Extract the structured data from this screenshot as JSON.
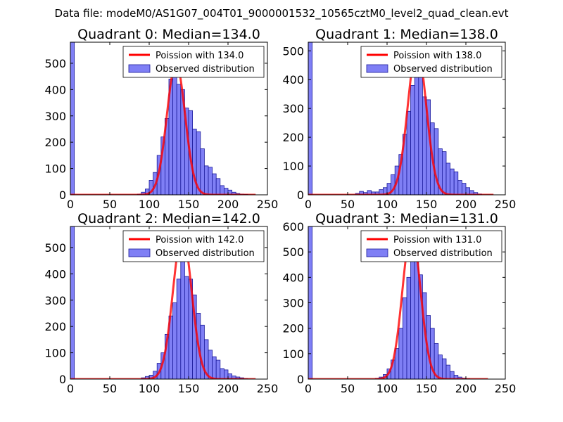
{
  "suptitle": "Data file: modeM0/AS1G07_004T01_9000001532_10565cztM0_level2_quad_clean.evt",
  "colors": {
    "bar_fill": "#7f7ff5",
    "bar_edge": "#1a1a99",
    "poisson_line": "#ff0000",
    "legend_edge": "#000000",
    "axes_edge": "#000000"
  },
  "chart_data": [
    {
      "type": "bar",
      "title": "Quadrant 0: Median=134.0",
      "xlim": [
        0,
        250
      ],
      "ylim": [
        0,
        580
      ],
      "xticks": [
        0,
        50,
        100,
        150,
        200,
        250
      ],
      "yticks": [
        0,
        100,
        200,
        300,
        400,
        500
      ],
      "bin_width": 5,
      "hist_bins": [
        [
          0,
          580
        ],
        [
          85,
          3
        ],
        [
          90,
          10
        ],
        [
          95,
          22
        ],
        [
          100,
          55
        ],
        [
          105,
          85
        ],
        [
          110,
          150
        ],
        [
          115,
          220
        ],
        [
          120,
          290
        ],
        [
          125,
          440
        ],
        [
          130,
          460
        ],
        [
          135,
          420
        ],
        [
          140,
          400
        ],
        [
          145,
          330
        ],
        [
          150,
          320
        ],
        [
          155,
          250
        ],
        [
          160,
          240
        ],
        [
          165,
          175
        ],
        [
          170,
          110
        ],
        [
          175,
          105
        ],
        [
          180,
          80
        ],
        [
          185,
          62
        ],
        [
          190,
          35
        ],
        [
          195,
          25
        ],
        [
          200,
          18
        ],
        [
          205,
          10
        ],
        [
          210,
          5
        ],
        [
          215,
          3
        ],
        [
          220,
          2
        ]
      ],
      "median": 134.0,
      "poisson_peak": 500,
      "poisson_range": [
        0,
        235
      ],
      "legend": [
        "Poission with 134.0",
        "Observed distribution"
      ]
    },
    {
      "type": "bar",
      "title": "Quadrant 1: Median=138.0",
      "xlim": [
        0,
        250
      ],
      "ylim": [
        0,
        530
      ],
      "xticks": [
        0,
        50,
        100,
        150,
        200,
        250
      ],
      "yticks": [
        0,
        100,
        200,
        300,
        400,
        500
      ],
      "bin_width": 5,
      "hist_bins": [
        [
          0,
          530
        ],
        [
          60,
          5
        ],
        [
          65,
          12
        ],
        [
          70,
          8
        ],
        [
          75,
          15
        ],
        [
          80,
          10
        ],
        [
          85,
          10
        ],
        [
          90,
          18
        ],
        [
          95,
          25
        ],
        [
          100,
          40
        ],
        [
          105,
          70
        ],
        [
          110,
          100
        ],
        [
          115,
          140
        ],
        [
          120,
          210
        ],
        [
          125,
          290
        ],
        [
          130,
          380
        ],
        [
          135,
          460
        ],
        [
          140,
          420
        ],
        [
          145,
          340
        ],
        [
          150,
          330
        ],
        [
          155,
          250
        ],
        [
          160,
          230
        ],
        [
          165,
          160
        ],
        [
          170,
          150
        ],
        [
          175,
          110
        ],
        [
          180,
          90
        ],
        [
          185,
          80
        ],
        [
          190,
          50
        ],
        [
          195,
          40
        ],
        [
          200,
          25
        ],
        [
          205,
          15
        ],
        [
          210,
          8
        ],
        [
          215,
          3
        ]
      ],
      "median": 138.0,
      "poisson_peak": 510,
      "poisson_range": [
        0,
        235
      ],
      "legend": [
        "Poission with 138.0",
        "Observed distribution"
      ]
    },
    {
      "type": "bar",
      "title": "Quadrant 2: Median=142.0",
      "xlim": [
        0,
        250
      ],
      "ylim": [
        0,
        580
      ],
      "xticks": [
        0,
        50,
        100,
        150,
        200,
        250
      ],
      "yticks": [
        0,
        100,
        200,
        300,
        400,
        500
      ],
      "bin_width": 5,
      "hist_bins": [
        [
          0,
          580
        ],
        [
          90,
          5
        ],
        [
          95,
          10
        ],
        [
          100,
          15
        ],
        [
          105,
          30
        ],
        [
          110,
          60
        ],
        [
          115,
          100
        ],
        [
          120,
          170
        ],
        [
          125,
          240
        ],
        [
          130,
          290
        ],
        [
          135,
          380
        ],
        [
          140,
          460
        ],
        [
          145,
          390
        ],
        [
          150,
          380
        ],
        [
          155,
          320
        ],
        [
          160,
          250
        ],
        [
          165,
          205
        ],
        [
          170,
          150
        ],
        [
          175,
          110
        ],
        [
          180,
          85
        ],
        [
          185,
          72
        ],
        [
          190,
          40
        ],
        [
          195,
          35
        ],
        [
          200,
          20
        ],
        [
          205,
          12
        ],
        [
          210,
          8
        ],
        [
          215,
          5
        ],
        [
          220,
          2
        ]
      ],
      "median": 142.0,
      "poisson_peak": 550,
      "poisson_range": [
        0,
        235
      ],
      "legend": [
        "Poission with 142.0",
        "Observed distribution"
      ]
    },
    {
      "type": "bar",
      "title": "Quadrant 3: Median=131.0",
      "xlim": [
        0,
        250
      ],
      "ylim": [
        0,
        600
      ],
      "xticks": [
        0,
        50,
        100,
        150,
        200,
        250
      ],
      "yticks": [
        0,
        100,
        200,
        300,
        400,
        500,
        600
      ],
      "bin_width": 5,
      "hist_bins": [
        [
          0,
          600
        ],
        [
          85,
          3
        ],
        [
          90,
          8
        ],
        [
          95,
          18
        ],
        [
          100,
          40
        ],
        [
          105,
          75
        ],
        [
          110,
          120
        ],
        [
          115,
          200
        ],
        [
          120,
          320
        ],
        [
          125,
          400
        ],
        [
          130,
          520
        ],
        [
          135,
          500
        ],
        [
          140,
          410
        ],
        [
          145,
          340
        ],
        [
          150,
          250
        ],
        [
          155,
          200
        ],
        [
          160,
          140
        ],
        [
          165,
          95
        ],
        [
          170,
          80
        ],
        [
          175,
          55
        ],
        [
          180,
          30
        ],
        [
          185,
          15
        ],
        [
          190,
          8
        ],
        [
          195,
          4
        ],
        [
          200,
          2
        ]
      ],
      "median": 131.0,
      "poisson_peak": 580,
      "poisson_range": [
        0,
        228
      ],
      "legend": [
        "Poission with 131.0",
        "Observed distribution"
      ]
    }
  ]
}
